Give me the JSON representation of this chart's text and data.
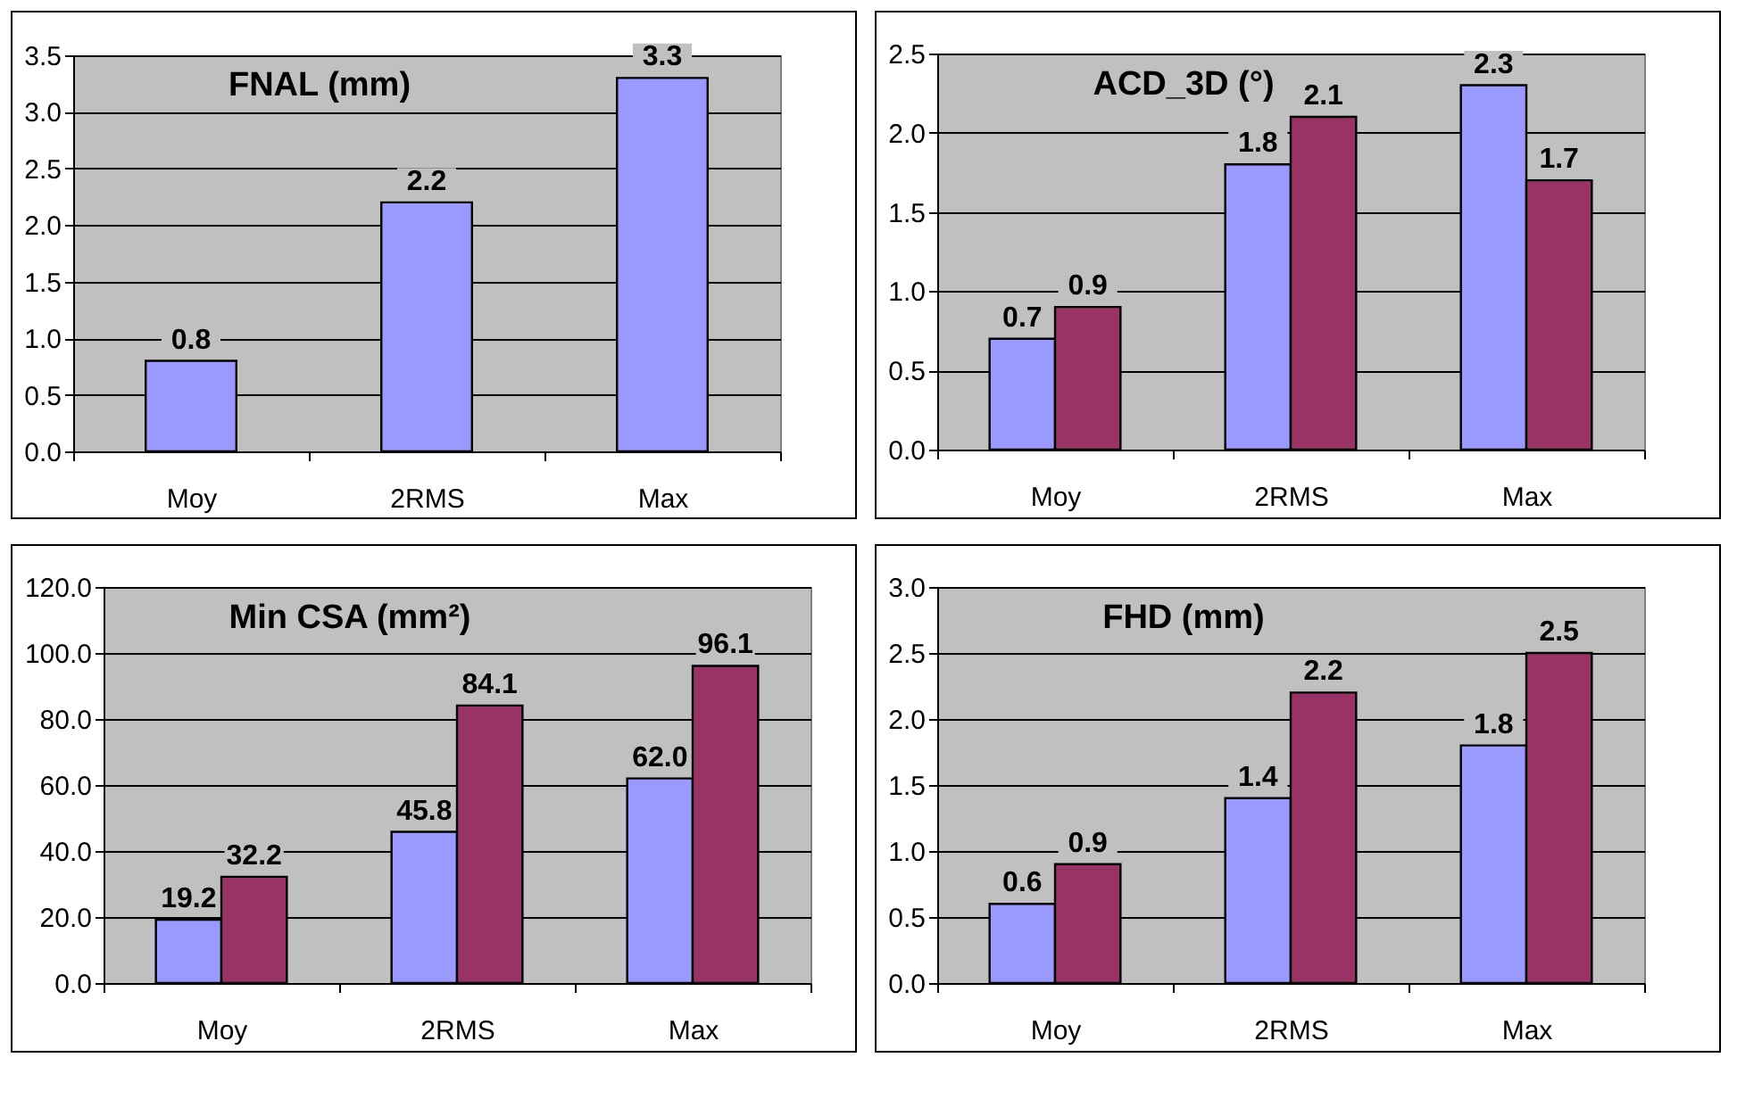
{
  "chart_data": [
    {
      "type": "bar",
      "title": "FNAL (mm)",
      "categories": [
        "Moy",
        "2RMS",
        "Max"
      ],
      "series": [
        {
          "color": "#9999ff",
          "values": [
            0.8,
            2.2,
            3.3
          ],
          "value_labels": [
            "0.8",
            "2.2",
            "3.3"
          ]
        }
      ],
      "ylim": [
        0,
        3.5
      ],
      "yticks": [
        {
          "value": 0,
          "label": "0.0"
        },
        {
          "value": 0.5,
          "label": "0.5"
        },
        {
          "value": 1,
          "label": "1.0"
        },
        {
          "value": 1.5,
          "label": "1.5"
        },
        {
          "value": 2,
          "label": "2.0"
        },
        {
          "value": 2.5,
          "label": "2.5"
        },
        {
          "value": 3,
          "label": "3.0"
        },
        {
          "value": 3.5,
          "label": "3.5"
        }
      ],
      "grid": "y",
      "legend": false
    },
    {
      "type": "bar",
      "title": "ACD_3D (°)",
      "categories": [
        "Moy",
        "2RMS",
        "Max"
      ],
      "series": [
        {
          "color": "#9999ff",
          "values": [
            0.7,
            1.8,
            2.3
          ],
          "value_labels": [
            "0.7",
            "1.8",
            "2.3"
          ]
        },
        {
          "color": "#993366",
          "values": [
            0.9,
            2.1,
            1.7
          ],
          "value_labels": [
            "0.9",
            "2.1",
            "1.7"
          ]
        }
      ],
      "ylim": [
        0,
        2.5
      ],
      "yticks": [
        {
          "value": 0,
          "label": "0.0"
        },
        {
          "value": 0.5,
          "label": "0.5"
        },
        {
          "value": 1,
          "label": "1.0"
        },
        {
          "value": 1.5,
          "label": "1.5"
        },
        {
          "value": 2,
          "label": "2.0"
        },
        {
          "value": 2.5,
          "label": "2.5"
        }
      ],
      "grid": "y",
      "legend": false
    },
    {
      "type": "bar",
      "title": "Min CSA (mm²)",
      "categories": [
        "Moy",
        "2RMS",
        "Max"
      ],
      "series": [
        {
          "color": "#9999ff",
          "values": [
            19.2,
            45.8,
            62.0
          ],
          "value_labels": [
            "19.2",
            "45.8",
            "62.0"
          ]
        },
        {
          "color": "#993366",
          "values": [
            32.2,
            84.1,
            96.1
          ],
          "value_labels": [
            "32.2",
            "84.1",
            "96.1"
          ]
        }
      ],
      "ylim": [
        0,
        120
      ],
      "yticks": [
        {
          "value": 0,
          "label": "0.0"
        },
        {
          "value": 20,
          "label": "20.0"
        },
        {
          "value": 40,
          "label": "40.0"
        },
        {
          "value": 60,
          "label": "60.0"
        },
        {
          "value": 80,
          "label": "80.0"
        },
        {
          "value": 100,
          "label": "100.0"
        },
        {
          "value": 120,
          "label": "120.0"
        }
      ],
      "grid": "y",
      "legend": false
    },
    {
      "type": "bar",
      "title": "FHD (mm)",
      "categories": [
        "Moy",
        "2RMS",
        "Max"
      ],
      "series": [
        {
          "color": "#9999ff",
          "values": [
            0.6,
            1.4,
            1.8
          ],
          "value_labels": [
            "0.6",
            "1.4",
            "1.8"
          ]
        },
        {
          "color": "#993366",
          "values": [
            0.9,
            2.2,
            2.5
          ],
          "value_labels": [
            "0.9",
            "2.2",
            "2.5"
          ]
        }
      ],
      "ylim": [
        0,
        3
      ],
      "yticks": [
        {
          "value": 0,
          "label": "0.0"
        },
        {
          "value": 0.5,
          "label": "0.5"
        },
        {
          "value": 1,
          "label": "1.0"
        },
        {
          "value": 1.5,
          "label": "1.5"
        },
        {
          "value": 2,
          "label": "2.0"
        },
        {
          "value": 2.5,
          "label": "2.5"
        },
        {
          "value": 3,
          "label": "3.0"
        }
      ],
      "grid": "y",
      "legend": false
    }
  ]
}
